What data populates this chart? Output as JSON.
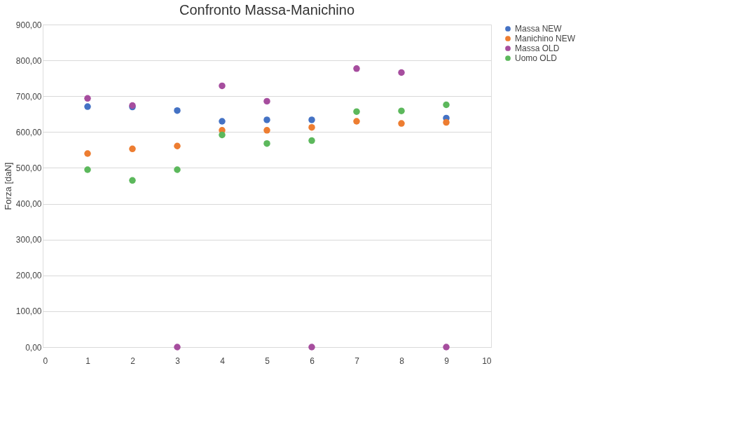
{
  "chart_data": {
    "type": "scatter",
    "title": "Confronto Massa-Manichino",
    "ylabel": "Forza [daN]",
    "x": [
      1,
      2,
      3,
      4,
      5,
      6,
      7,
      8,
      9
    ],
    "series": [
      {
        "name": "Massa NEW",
        "color": "#4472c4",
        "values": [
          671,
          670,
          660,
          630,
          634,
          634,
          null,
          null,
          639
        ]
      },
      {
        "name": "Manichino NEW",
        "color": "#ed7d31",
        "values": [
          540,
          553,
          561,
          605,
          605,
          613,
          630,
          624,
          627
        ]
      },
      {
        "name": "Massa OLD",
        "color": "#a64d9e",
        "values": [
          694,
          674,
          0,
          729,
          686,
          0,
          777,
          766,
          0
        ]
      },
      {
        "name": "Uomo OLD",
        "color": "#5cb85c",
        "values": [
          495,
          465,
          495,
          592,
          568,
          576,
          657,
          659,
          676
        ]
      }
    ],
    "xlim": [
      0,
      10
    ],
    "xticks": [
      0,
      1,
      2,
      3,
      4,
      5,
      6,
      7,
      8,
      9,
      10
    ],
    "ylim": [
      0,
      900
    ],
    "yticks": [
      {
        "value": 0,
        "label": "0,00"
      },
      {
        "value": 100,
        "label": "100,00"
      },
      {
        "value": 200,
        "label": "200,00"
      },
      {
        "value": 300,
        "label": "300,00"
      },
      {
        "value": 400,
        "label": "400,00"
      },
      {
        "value": 500,
        "label": "500,00"
      },
      {
        "value": 600,
        "label": "600,00"
      },
      {
        "value": 700,
        "label": "700,00"
      },
      {
        "value": 800,
        "label": "800,00"
      },
      {
        "value": 900,
        "label": "900,00"
      }
    ],
    "grid": "y",
    "legend": "right",
    "marker": "circle"
  }
}
